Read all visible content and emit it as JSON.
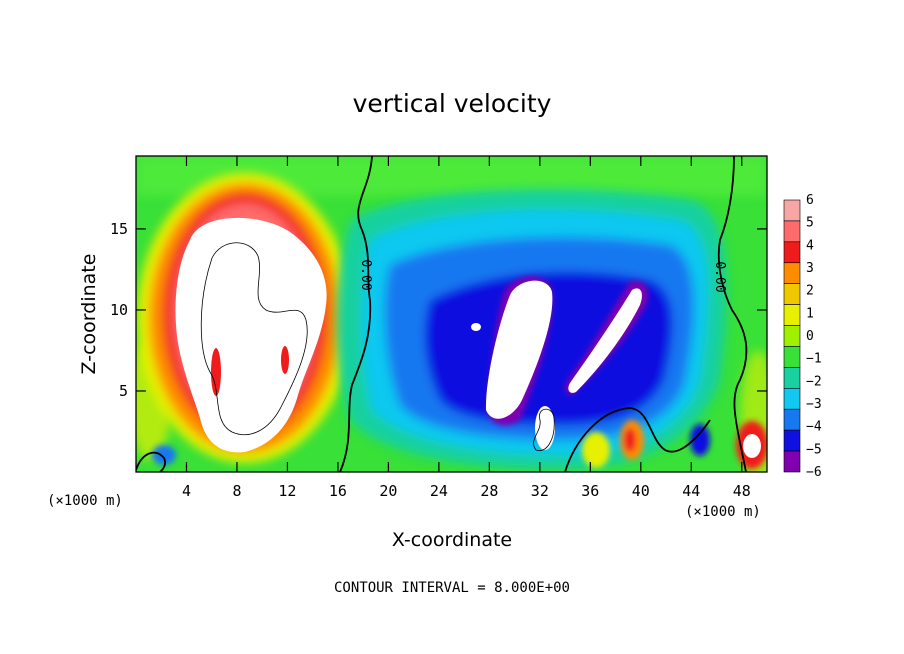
{
  "chart_data": {
    "type": "heatmap",
    "title": "vertical velocity",
    "xlabel": "X-coordinate",
    "ylabel": "Z-coordinate",
    "x_unit": "(×1000 m)",
    "y_unit": "(×1000 m)",
    "xlim": [
      0,
      50
    ],
    "ylim": [
      0,
      19.5
    ],
    "x_ticks": [
      4,
      8,
      12,
      16,
      20,
      24,
      28,
      32,
      36,
      40,
      44,
      48
    ],
    "y_ticks": [
      5,
      10,
      15
    ],
    "colorbar": {
      "levels": [
        6,
        5,
        4,
        3,
        2,
        1,
        0,
        -1,
        -2,
        -3,
        -4,
        -5,
        -6
      ],
      "colors": [
        "#f7a6a6",
        "#ff6a6a",
        "#f01c1c",
        "#ff8c00",
        "#f0c800",
        "#e6f000",
        "#a0f000",
        "#38e038",
        "#18d0a0",
        "#10c8f0",
        "#1878f0",
        "#1010e0",
        "#8000b0"
      ]
    },
    "contour_labels": [
      "0.00",
      "0.00"
    ],
    "note": "CONTOUR INTERVAL = 8.000E+00",
    "features": [
      {
        "kind": "updraft",
        "x": 9,
        "z": 10,
        "value": 6
      },
      {
        "kind": "downdraft",
        "x": 32,
        "z": 9,
        "value": -6
      },
      {
        "kind": "updraft",
        "x": 38.5,
        "z": 2,
        "value": 4
      },
      {
        "kind": "updraft",
        "x": 48.5,
        "z": 1.5,
        "value": 5
      }
    ]
  },
  "colors": {
    "background": "#38e038",
    "strong_up": "#ffffff",
    "strong_down": "#ffffff"
  }
}
